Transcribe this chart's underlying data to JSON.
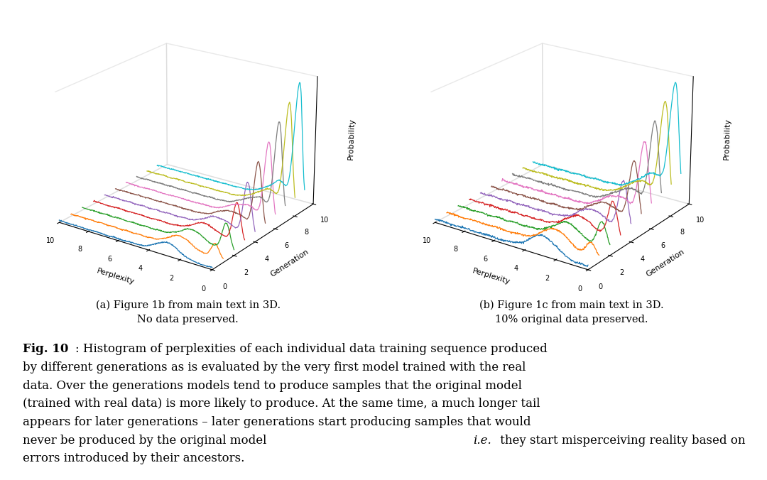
{
  "colors_order": [
    "#1f77b4",
    "#ff7f0e",
    "#2ca02c",
    "#d62728",
    "#9467bd",
    "#8c564b",
    "#e377c2",
    "#7f7f7f",
    "#bcbd22",
    "#17becf"
  ],
  "n_generations": 10,
  "xlabel": "Perplexity",
  "ylabel": "Generation",
  "zlabel": "Probability",
  "caption_a_line1": "(a) Figure 1b from main text in 3D.",
  "caption_a_line2": "No data preserved.",
  "caption_b_line1": "(b) Figure 1c from main text in 3D.",
  "caption_b_line2": "10% original data preserved.",
  "fig_bold": "Fig. 10",
  "fig_colon": ":",
  "fig_body": " Histogram of perplexities of each individual data training sequence produced by different generations as is evaluated by the very first model trained with the real data. Over the generations models tend to produce samples that the original model (trained with real data) is more likely to produce. At the same time, a much longer tail appears for later generations – later generations start producing samples that would never be produced by the original model ",
  "fig_italic": "i.e.",
  "fig_tail": " they start misperceiving reality based on errors introduced by their ancestors.",
  "background_color": "#ffffff",
  "elev": 22,
  "azim": -55,
  "perp_max": 10,
  "gen_max": 10
}
